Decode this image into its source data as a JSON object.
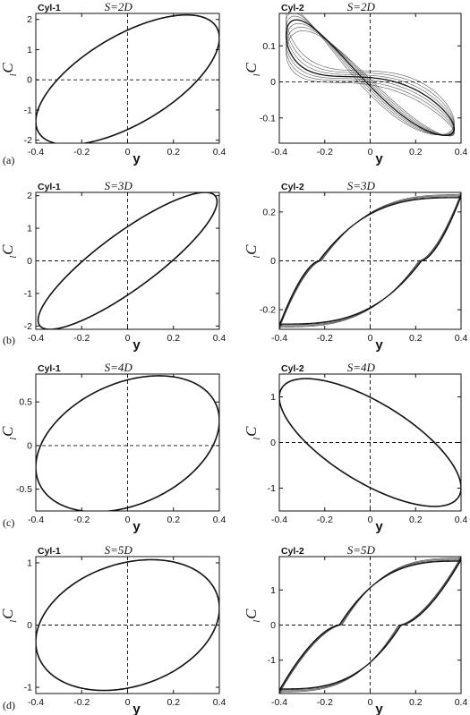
{
  "figure": {
    "row_labels": [
      "(a)",
      "(b)",
      "(c)",
      "(d)"
    ]
  },
  "chart_data": [
    {
      "type": "line",
      "panel": "Cyl-1 S=2D",
      "label": "Cyl-1",
      "spacing": "S=2D",
      "xlabel": "y",
      "ylabel": "C",
      "ylabel_sub": "l",
      "xlim": [
        -0.4,
        0.4
      ],
      "ylim": [
        -2.1,
        2.2
      ],
      "xticks": [
        -0.4,
        -0.2,
        0,
        0.2,
        0.4
      ],
      "xticklabels": [
        "-0.4",
        "-0.2",
        "0",
        "0.2",
        "0.4"
      ],
      "yticks": [
        -2,
        -1,
        0,
        1,
        2
      ],
      "yticklabels": [
        "-2",
        "-1",
        "0",
        "1",
        "2"
      ],
      "loop": {
        "x_amp": 0.4,
        "y_amp": 2.15,
        "phase_deg": 50,
        "y_offset": 0
      },
      "reference_lines": {
        "x": 0,
        "y": 0
      }
    },
    {
      "type": "line",
      "panel": "Cyl-2 S=2D",
      "label": "Cyl-2",
      "spacing": "S=2D",
      "xlabel": "y",
      "ylabel": "C",
      "ylabel_sub": "l",
      "xlim": [
        -0.4,
        0.4
      ],
      "ylim": [
        -0.17,
        0.19
      ],
      "xticks": [
        -0.4,
        -0.2,
        0,
        0.2,
        0.4
      ],
      "xticklabels": [
        "-0.4",
        "-0.2",
        "0",
        "0.2",
        "0.4"
      ],
      "yticks": [
        -0.1,
        0,
        0.1
      ],
      "yticklabels": [
        "-0.1",
        "0",
        "0.1"
      ],
      "figure_eight": true,
      "reference_lines": {
        "x": 0,
        "y": 0
      }
    },
    {
      "type": "line",
      "panel": "Cyl-1 S=3D",
      "label": "Cyl-1",
      "spacing": "S=3D",
      "xlabel": "y",
      "ylabel": "C",
      "ylabel_sub": "l",
      "xlim": [
        -0.4,
        0.4
      ],
      "ylim": [
        -2.1,
        2.1
      ],
      "xticks": [
        -0.4,
        -0.2,
        0,
        0.2,
        0.4
      ],
      "xticklabels": [
        "-0.4",
        "-0.2",
        "0",
        "0.2",
        "0.4"
      ],
      "yticks": [
        -2,
        -1,
        0,
        1,
        2
      ],
      "yticklabels": [
        "-2",
        "-1",
        "0",
        "1",
        "2"
      ],
      "loop": {
        "x_amp": 0.39,
        "y_amp": 2.1,
        "phase_deg": 30,
        "y_offset": 0
      },
      "reference_lines": {
        "x": 0,
        "y": 0
      }
    },
    {
      "type": "line",
      "panel": "Cyl-2 S=3D",
      "label": "Cyl-2",
      "spacing": "S=3D",
      "xlabel": "y",
      "ylabel": "C",
      "ylabel_sub": "l",
      "xlim": [
        -0.4,
        0.4
      ],
      "ylim": [
        -0.28,
        0.28
      ],
      "xticks": [
        -0.4,
        -0.2,
        0,
        0.2,
        0.4
      ],
      "xticklabels": [
        "-0.4",
        "-0.2",
        "0",
        "0.2",
        "0.4"
      ],
      "yticks": [
        -0.2,
        0,
        0.2
      ],
      "yticklabels": [
        "-0.2",
        "0",
        "0.2"
      ],
      "hysteresis": {
        "x_amp": 0.4,
        "y_amp": 0.27,
        "zero_crossings": [
          -0.22,
          0.22
        ]
      },
      "reference_lines": {
        "x": 0,
        "y": 0
      }
    },
    {
      "type": "line",
      "panel": "Cyl-1 S=4D",
      "label": "Cyl-1",
      "spacing": "S=4D",
      "xlabel": "y",
      "ylabel": "C",
      "ylabel_sub": "l",
      "xlim": [
        -0.4,
        0.4
      ],
      "ylim": [
        -0.75,
        0.82
      ],
      "xticks": [
        -0.4,
        -0.2,
        0,
        0.2,
        0.4
      ],
      "xticklabels": [
        "-0.4",
        "-0.2",
        "0",
        "0.2",
        "0.4"
      ],
      "yticks": [
        -0.5,
        0,
        0.5
      ],
      "yticklabels": [
        "-0.5",
        "0",
        "0.5"
      ],
      "loop": {
        "x_amp": 0.4,
        "y_amp": 0.78,
        "phase_deg": 70,
        "y_offset": 0.02
      },
      "reference_lines": {
        "x": 0,
        "y": 0
      }
    },
    {
      "type": "line",
      "panel": "Cyl-2 S=4D",
      "label": "Cyl-2",
      "spacing": "S=4D",
      "xlabel": "y",
      "ylabel": "C",
      "ylabel_sub": "l",
      "xlim": [
        -0.4,
        0.4
      ],
      "ylim": [
        -1.5,
        1.5
      ],
      "xticks": [
        -0.4,
        -0.2,
        0,
        0.2,
        0.4
      ],
      "xticklabels": [
        "-0.4",
        "-0.2",
        "0",
        "0.2",
        "0.4"
      ],
      "yticks": [
        -1,
        0,
        1
      ],
      "yticklabels": [
        "-1",
        "0",
        "1"
      ],
      "loop": {
        "x_amp": 0.4,
        "y_amp": 1.4,
        "phase_deg": -135,
        "y_offset": 0
      },
      "reference_lines": {
        "x": 0,
        "y": 0
      }
    },
    {
      "type": "line",
      "panel": "Cyl-1 S=5D",
      "label": "Cyl-1",
      "spacing": "S=5D",
      "xlabel": "y",
      "ylabel": "C",
      "ylabel_sub": "l",
      "xlim": [
        -0.4,
        0.4
      ],
      "ylim": [
        -1.1,
        1.1
      ],
      "xticks": [
        -0.4,
        -0.2,
        0,
        0.2,
        0.4
      ],
      "xticklabels": [
        "-0.4",
        "-0.2",
        "0",
        "0.2",
        "0.4"
      ],
      "yticks": [
        -1,
        0,
        1
      ],
      "yticklabels": [
        "-1",
        "0",
        "1"
      ],
      "loop": {
        "x_amp": 0.4,
        "y_amp": 1.05,
        "phase_deg": 75,
        "y_offset": 0
      },
      "reference_lines": {
        "x": 0,
        "y": 0
      }
    },
    {
      "type": "line",
      "panel": "Cyl-2 S=5D",
      "label": "Cyl-2",
      "spacing": "S=5D",
      "xlabel": "y",
      "ylabel": "C",
      "ylabel_sub": "l",
      "xlim": [
        -0.4,
        0.4
      ],
      "ylim": [
        -1.95,
        1.95
      ],
      "xticks": [
        -0.4,
        -0.2,
        0,
        0.2,
        0.4
      ],
      "xticklabels": [
        "-0.4",
        "-0.2",
        "0",
        "0.2",
        "0.4"
      ],
      "yticks": [
        -1,
        0,
        1
      ],
      "yticklabels": [
        "-1",
        "0",
        "1"
      ],
      "hysteresis": {
        "x_amp": 0.4,
        "y_amp": 1.9,
        "zero_crossings": [
          -0.13,
          0.13
        ]
      },
      "reference_lines": {
        "x": 0,
        "y": 0
      }
    }
  ]
}
